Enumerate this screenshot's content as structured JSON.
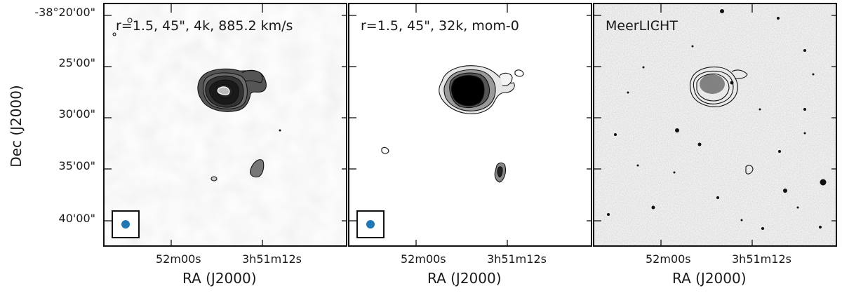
{
  "panels": [
    {
      "label": "r=1.5, 45\", 4k, 885.2 km/s"
    },
    {
      "label": "r=1.5, 45\", 32k, mom-0"
    },
    {
      "label": "MeerLICHT"
    }
  ],
  "axes": {
    "ylabel": "Dec (J2000)",
    "xlabel": "RA (J2000)",
    "yticks": [
      "-38°20'00\"",
      "25'00\"",
      "30'00\"",
      "35'00\"",
      "40'00\""
    ],
    "xticks": [
      "52m00s",
      "3h51m12s"
    ]
  },
  "colors": {
    "beam": "#1f77b4",
    "contour": "#111111",
    "frame": "#111111"
  }
}
